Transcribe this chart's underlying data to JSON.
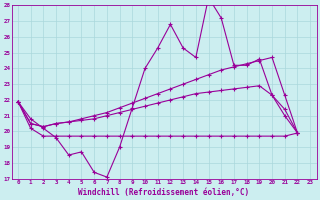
{
  "xlabel": "Windchill (Refroidissement éolien,°C)",
  "xlim": [
    -0.5,
    23.5
  ],
  "ylim": [
    17,
    28
  ],
  "yticks": [
    17,
    18,
    19,
    20,
    21,
    22,
    23,
    24,
    25,
    26,
    27,
    28
  ],
  "xticks": [
    0,
    1,
    2,
    3,
    4,
    5,
    6,
    7,
    8,
    9,
    10,
    11,
    12,
    13,
    14,
    15,
    16,
    17,
    18,
    19,
    20,
    21,
    22,
    23
  ],
  "background_color": "#cceef0",
  "grid_color": "#aad8dc",
  "line_color": "#990099",
  "series_noisy": [
    21.9,
    20.8,
    20.2,
    19.6,
    18.5,
    18.7,
    17.4,
    17.1,
    19.0,
    21.5,
    24.0,
    25.3,
    26.8,
    25.3,
    24.7,
    28.5,
    27.2,
    24.2,
    24.2,
    24.6,
    22.3,
    21.0,
    19.9
  ],
  "series_upper": [
    21.9,
    20.5,
    20.3,
    20.5,
    20.6,
    20.8,
    21.0,
    21.2,
    21.5,
    21.8,
    22.1,
    22.4,
    22.7,
    23.0,
    23.3,
    23.6,
    23.9,
    24.1,
    24.3,
    24.5,
    24.7,
    22.3,
    19.9
  ],
  "series_mid": [
    21.9,
    20.5,
    20.3,
    20.5,
    20.6,
    20.7,
    20.8,
    21.0,
    21.2,
    21.4,
    21.6,
    21.8,
    22.0,
    22.2,
    22.4,
    22.5,
    22.6,
    22.7,
    22.8,
    22.9,
    22.3,
    21.4,
    19.9
  ],
  "series_flat": [
    21.9,
    20.2,
    19.7,
    19.7,
    19.7,
    19.7,
    19.7,
    19.7,
    19.7,
    19.7,
    19.7,
    19.7,
    19.7,
    19.7,
    19.7,
    19.7,
    19.7,
    19.7,
    19.7,
    19.7,
    19.7,
    19.7,
    19.9
  ]
}
